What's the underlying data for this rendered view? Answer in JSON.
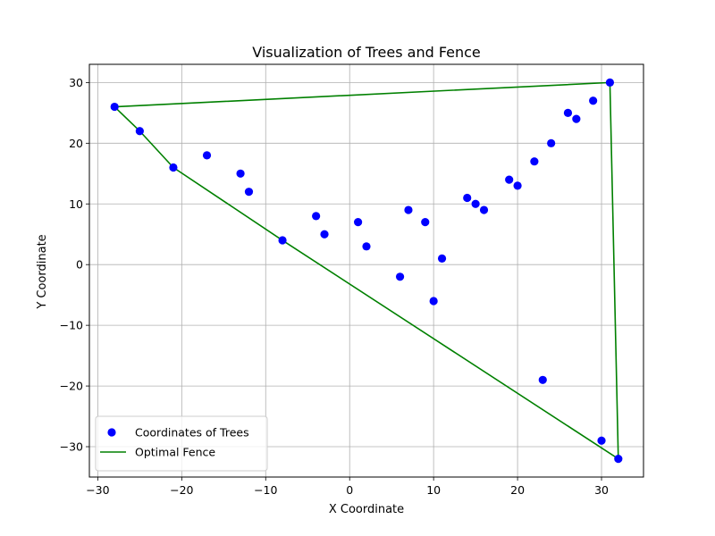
{
  "chart_data": {
    "type": "scatter",
    "title": "Visualization of Trees and Fence",
    "xlabel": "X Coordinate",
    "ylabel": "Y Coordinate",
    "xlim": [
      -31,
      35
    ],
    "ylim": [
      -35,
      33
    ],
    "xticks": [
      -30,
      -20,
      -10,
      0,
      10,
      20,
      30
    ],
    "yticks": [
      -30,
      -20,
      -10,
      0,
      10,
      20,
      30
    ],
    "xtick_labels": [
      "−30",
      "−20",
      "−10",
      "0",
      "10",
      "20",
      "30"
    ],
    "ytick_labels": [
      "−30",
      "−20",
      "−10",
      "0",
      "10",
      "20",
      "30"
    ],
    "grid": true,
    "legend_position": "lower-left",
    "series": [
      {
        "name": "Coordinates of Trees",
        "kind": "scatter",
        "color": "#0000ff",
        "points": [
          [
            -28,
            26
          ],
          [
            -25,
            22
          ],
          [
            -21,
            16
          ],
          [
            -17,
            18
          ],
          [
            -13,
            15
          ],
          [
            -12,
            12
          ],
          [
            -8,
            4
          ],
          [
            -4,
            8
          ],
          [
            -3,
            5
          ],
          [
            1,
            7
          ],
          [
            2,
            3
          ],
          [
            6,
            -2
          ],
          [
            7,
            9
          ],
          [
            9,
            7
          ],
          [
            10,
            -6
          ],
          [
            11,
            1
          ],
          [
            14,
            11
          ],
          [
            15,
            10
          ],
          [
            16,
            9
          ],
          [
            19,
            14
          ],
          [
            20,
            13
          ],
          [
            22,
            17
          ],
          [
            23,
            -19
          ],
          [
            24,
            20
          ],
          [
            26,
            25
          ],
          [
            27,
            24
          ],
          [
            29,
            27
          ],
          [
            31,
            30
          ],
          [
            30,
            -29
          ],
          [
            32,
            -32
          ]
        ]
      },
      {
        "name": "Optimal Fence",
        "kind": "line",
        "color": "#008000",
        "points": [
          [
            -28,
            26
          ],
          [
            31,
            30
          ],
          [
            32,
            -32
          ],
          [
            -8,
            4
          ],
          [
            -21,
            16
          ],
          [
            -25,
            22
          ],
          [
            -28,
            26
          ]
        ]
      }
    ]
  }
}
